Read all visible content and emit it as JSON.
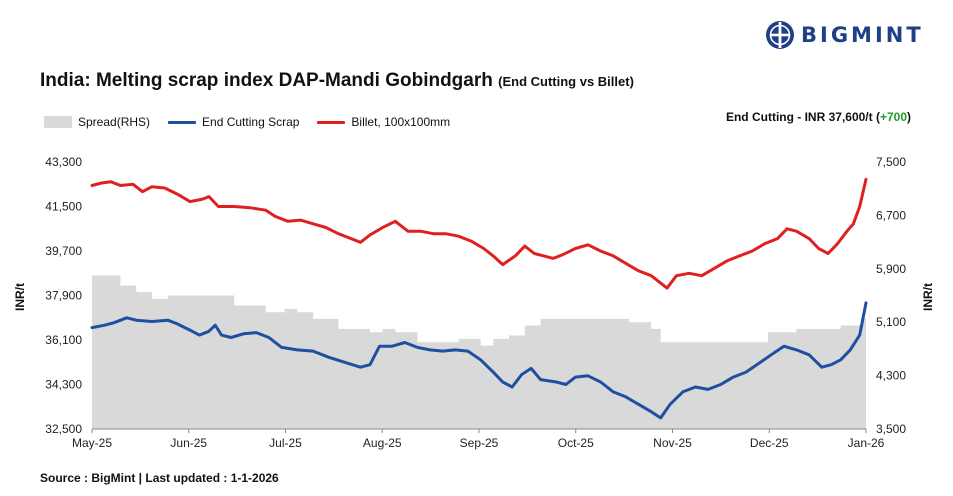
{
  "brand": {
    "name": "BIGMINT",
    "color": "#1f3f86"
  },
  "header": {
    "title": "India: Melting scrap index DAP-Mandi Gobindgarh",
    "subtitle": "(End Cutting vs Billet)"
  },
  "callout": {
    "label": "End Cutting - INR 37,600/t (",
    "change": "+700",
    "close": ")"
  },
  "footer": {
    "source": "Source : BigMint | Last updated : 1-1-2026"
  },
  "chart_data": {
    "type": "line",
    "x_start": "2025-05-01",
    "x_end": "2026-01-01",
    "x_tick_labels": [
      "May-25",
      "Jun-25",
      "Jul-25",
      "Aug-25",
      "Sep-25",
      "Oct-25",
      "Nov-25",
      "Dec-25",
      "Jan-26"
    ],
    "y_left": {
      "label": "INR/t",
      "range": [
        32500,
        43300
      ],
      "ticks": [
        "32,500",
        "34,300",
        "36,100",
        "37,900",
        "39,700",
        "41,500",
        "43,300"
      ]
    },
    "y_right": {
      "label": "INR/t",
      "range": [
        3500,
        7500
      ],
      "ticks": [
        "3,500",
        "4,300",
        "5,100",
        "5,900",
        "6,700",
        "7,500"
      ]
    },
    "grid": false,
    "legend": "top-left",
    "series": [
      {
        "name": "Spread(RHS)",
        "axis": "right",
        "style": "area",
        "color": "#d9d9d9",
        "points": [
          [
            "2025-05-01",
            5800
          ],
          [
            "2025-05-08",
            5800
          ],
          [
            "2025-05-10",
            5650
          ],
          [
            "2025-05-15",
            5550
          ],
          [
            "2025-05-20",
            5450
          ],
          [
            "2025-05-25",
            5500
          ],
          [
            "2025-06-10",
            5500
          ],
          [
            "2025-06-15",
            5350
          ],
          [
            "2025-06-25",
            5250
          ],
          [
            "2025-07-01",
            5300
          ],
          [
            "2025-07-05",
            5250
          ],
          [
            "2025-07-10",
            5150
          ],
          [
            "2025-07-18",
            5000
          ],
          [
            "2025-07-28",
            4950
          ],
          [
            "2025-08-01",
            5000
          ],
          [
            "2025-08-05",
            4950
          ],
          [
            "2025-08-12",
            4800
          ],
          [
            "2025-08-20",
            4800
          ],
          [
            "2025-08-25",
            4850
          ],
          [
            "2025-09-01",
            4750
          ],
          [
            "2025-09-05",
            4850
          ],
          [
            "2025-09-10",
            4900
          ],
          [
            "2025-09-15",
            5050
          ],
          [
            "2025-09-20",
            5150
          ],
          [
            "2025-10-10",
            5150
          ],
          [
            "2025-10-18",
            5100
          ],
          [
            "2025-10-25",
            5000
          ],
          [
            "2025-10-28",
            4800
          ],
          [
            "2025-11-10",
            4800
          ],
          [
            "2025-11-20",
            4800
          ],
          [
            "2025-12-01",
            4950
          ],
          [
            "2025-12-10",
            5000
          ],
          [
            "2025-12-20",
            5000
          ],
          [
            "2025-12-24",
            5050
          ],
          [
            "2025-12-31",
            5150
          ]
        ]
      },
      {
        "name": "End Cutting Scrap",
        "axis": "left",
        "style": "line",
        "color": "#1f4fa0",
        "points": [
          [
            "2025-05-01",
            36600
          ],
          [
            "2025-05-05",
            36700
          ],
          [
            "2025-05-08",
            36800
          ],
          [
            "2025-05-12",
            37000
          ],
          [
            "2025-05-15",
            36900
          ],
          [
            "2025-05-20",
            36850
          ],
          [
            "2025-05-25",
            36900
          ],
          [
            "2025-05-28",
            36750
          ],
          [
            "2025-06-01",
            36500
          ],
          [
            "2025-06-04",
            36300
          ],
          [
            "2025-06-07",
            36450
          ],
          [
            "2025-06-09",
            36700
          ],
          [
            "2025-06-11",
            36300
          ],
          [
            "2025-06-14",
            36200
          ],
          [
            "2025-06-18",
            36350
          ],
          [
            "2025-06-22",
            36400
          ],
          [
            "2025-06-26",
            36200
          ],
          [
            "2025-06-30",
            35800
          ],
          [
            "2025-07-05",
            35700
          ],
          [
            "2025-07-10",
            35650
          ],
          [
            "2025-07-15",
            35400
          ],
          [
            "2025-07-20",
            35200
          ],
          [
            "2025-07-25",
            35000
          ],
          [
            "2025-07-28",
            35100
          ],
          [
            "2025-07-31",
            35850
          ],
          [
            "2025-08-04",
            35850
          ],
          [
            "2025-08-08",
            36000
          ],
          [
            "2025-08-12",
            35800
          ],
          [
            "2025-08-16",
            35700
          ],
          [
            "2025-08-20",
            35650
          ],
          [
            "2025-08-24",
            35700
          ],
          [
            "2025-08-28",
            35650
          ],
          [
            "2025-09-01",
            35300
          ],
          [
            "2025-09-05",
            34800
          ],
          [
            "2025-09-08",
            34400
          ],
          [
            "2025-09-11",
            34200
          ],
          [
            "2025-09-14",
            34700
          ],
          [
            "2025-09-17",
            34950
          ],
          [
            "2025-09-20",
            34500
          ],
          [
            "2025-09-25",
            34400
          ],
          [
            "2025-09-28",
            34300
          ],
          [
            "2025-10-01",
            34600
          ],
          [
            "2025-10-05",
            34650
          ],
          [
            "2025-10-09",
            34400
          ],
          [
            "2025-10-13",
            34000
          ],
          [
            "2025-10-17",
            33800
          ],
          [
            "2025-10-21",
            33500
          ],
          [
            "2025-10-25",
            33200
          ],
          [
            "2025-10-28",
            32950
          ],
          [
            "2025-10-31",
            33500
          ],
          [
            "2025-11-04",
            34000
          ],
          [
            "2025-11-08",
            34200
          ],
          [
            "2025-11-12",
            34100
          ],
          [
            "2025-11-16",
            34300
          ],
          [
            "2025-11-20",
            34600
          ],
          [
            "2025-11-24",
            34800
          ],
          [
            "2025-11-28",
            35150
          ],
          [
            "2025-12-02",
            35500
          ],
          [
            "2025-12-06",
            35850
          ],
          [
            "2025-12-10",
            35700
          ],
          [
            "2025-12-14",
            35500
          ],
          [
            "2025-12-18",
            35000
          ],
          [
            "2025-12-21",
            35100
          ],
          [
            "2025-12-24",
            35300
          ],
          [
            "2025-12-27",
            35700
          ],
          [
            "2025-12-30",
            36300
          ],
          [
            "2026-01-01",
            37600
          ]
        ]
      },
      {
        "name": "Billet, 100x100mm",
        "axis": "left",
        "style": "line",
        "color": "#e02020",
        "points": [
          [
            "2025-05-01",
            42350
          ],
          [
            "2025-05-04",
            42450
          ],
          [
            "2025-05-07",
            42500
          ],
          [
            "2025-05-10",
            42350
          ],
          [
            "2025-05-14",
            42400
          ],
          [
            "2025-05-17",
            42100
          ],
          [
            "2025-05-20",
            42300
          ],
          [
            "2025-05-24",
            42250
          ],
          [
            "2025-05-28",
            42000
          ],
          [
            "2025-06-01",
            41700
          ],
          [
            "2025-06-05",
            41800
          ],
          [
            "2025-06-07",
            41900
          ],
          [
            "2025-06-10",
            41500
          ],
          [
            "2025-06-15",
            41500
          ],
          [
            "2025-06-20",
            41450
          ],
          [
            "2025-06-25",
            41350
          ],
          [
            "2025-06-28",
            41100
          ],
          [
            "2025-07-02",
            40900
          ],
          [
            "2025-07-06",
            40950
          ],
          [
            "2025-07-10",
            40800
          ],
          [
            "2025-07-14",
            40650
          ],
          [
            "2025-07-18",
            40400
          ],
          [
            "2025-07-22",
            40200
          ],
          [
            "2025-07-25",
            40050
          ],
          [
            "2025-07-28",
            40350
          ],
          [
            "2025-08-01",
            40650
          ],
          [
            "2025-08-05",
            40900
          ],
          [
            "2025-08-09",
            40500
          ],
          [
            "2025-08-13",
            40500
          ],
          [
            "2025-08-17",
            40400
          ],
          [
            "2025-08-21",
            40400
          ],
          [
            "2025-08-25",
            40300
          ],
          [
            "2025-08-29",
            40100
          ],
          [
            "2025-09-02",
            39800
          ],
          [
            "2025-09-05",
            39500
          ],
          [
            "2025-09-08",
            39150
          ],
          [
            "2025-09-12",
            39500
          ],
          [
            "2025-09-15",
            39900
          ],
          [
            "2025-09-18",
            39600
          ],
          [
            "2025-09-21",
            39500
          ],
          [
            "2025-09-24",
            39400
          ],
          [
            "2025-09-27",
            39550
          ],
          [
            "2025-10-01",
            39800
          ],
          [
            "2025-10-05",
            39950
          ],
          [
            "2025-10-09",
            39700
          ],
          [
            "2025-10-13",
            39500
          ],
          [
            "2025-10-17",
            39200
          ],
          [
            "2025-10-21",
            38900
          ],
          [
            "2025-10-25",
            38700
          ],
          [
            "2025-10-28",
            38400
          ],
          [
            "2025-10-30",
            38200
          ],
          [
            "2025-11-02",
            38700
          ],
          [
            "2025-11-06",
            38800
          ],
          [
            "2025-11-10",
            38700
          ],
          [
            "2025-11-14",
            39000
          ],
          [
            "2025-11-18",
            39300
          ],
          [
            "2025-11-22",
            39500
          ],
          [
            "2025-11-26",
            39700
          ],
          [
            "2025-11-30",
            40000
          ],
          [
            "2025-12-04",
            40200
          ],
          [
            "2025-12-07",
            40600
          ],
          [
            "2025-12-10",
            40500
          ],
          [
            "2025-12-14",
            40200
          ],
          [
            "2025-12-17",
            39800
          ],
          [
            "2025-12-20",
            39600
          ],
          [
            "2025-12-23",
            40000
          ],
          [
            "2025-12-26",
            40500
          ],
          [
            "2025-12-28",
            40800
          ],
          [
            "2025-12-30",
            41500
          ],
          [
            "2026-01-01",
            42600
          ]
        ]
      }
    ]
  }
}
